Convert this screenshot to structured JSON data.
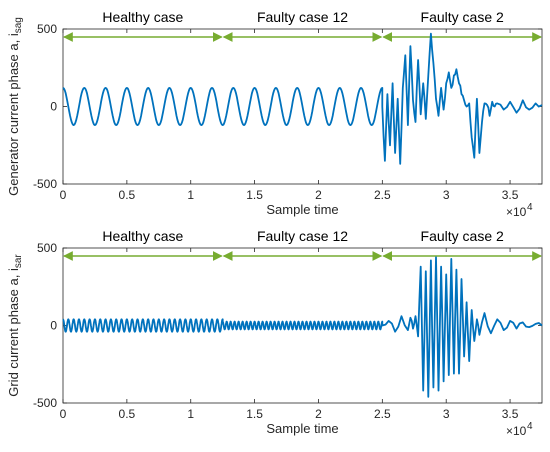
{
  "chart_data": [
    {
      "type": "line",
      "ylabel": "Generator current phase a, i",
      "ylabel_sub": "sag",
      "xlabel": "Sample time",
      "x_exponent_base": "×10",
      "x_exponent_power": "4",
      "xlim": [
        0,
        3.75
      ],
      "ylim": [
        -500,
        500
      ],
      "xticks": [
        0,
        0.5,
        1,
        1.5,
        2,
        2.5,
        3,
        3.5
      ],
      "yticks": [
        -500,
        0,
        500
      ],
      "xtick_labels": [
        "0",
        "0.5",
        "1",
        "1.5",
        "2",
        "2.5",
        "3",
        "3.5"
      ],
      "ytick_labels": [
        "-500",
        "0",
        "500"
      ],
      "line_color": "#0072BD",
      "arrow_color": "#77AC30",
      "segments": [
        {
          "label": "Healthy case",
          "x_start": 0,
          "x_end": 1.25
        },
        {
          "label": "Faulty case 12",
          "x_start": 1.25,
          "x_end": 2.5
        },
        {
          "label": "Faulty case 2",
          "x_start": 2.5,
          "x_end": 3.75
        }
      ],
      "series": [
        {
          "values_description_periodic": [
            {
              "x_start": 0,
              "x_end": 2.5,
              "amplitude": 120,
              "cycles": 15
            }
          ],
          "x": [
            2.5,
            2.52,
            2.54,
            2.56,
            2.58,
            2.6,
            2.62,
            2.64,
            2.66,
            2.68,
            2.7,
            2.72,
            2.74,
            2.76,
            2.78,
            2.8,
            2.82,
            2.84,
            2.86,
            2.88,
            2.9,
            2.92,
            2.94,
            2.96,
            2.98,
            3.0,
            3.02,
            3.04,
            3.06,
            3.08,
            3.1,
            3.12,
            3.14,
            3.16,
            3.18,
            3.2,
            3.22,
            3.24,
            3.26,
            3.28,
            3.3,
            3.32,
            3.34,
            3.36,
            3.38,
            3.4,
            3.45,
            3.5,
            3.55,
            3.6,
            3.65,
            3.7,
            3.75
          ],
          "y": [
            0,
            -350,
            80,
            -250,
            150,
            -300,
            50,
            -370,
            120,
            330,
            -120,
            390,
            40,
            -100,
            300,
            -50,
            150,
            -80,
            200,
            470,
            280,
            50,
            -60,
            120,
            -20,
            150,
            220,
            120,
            200,
            240,
            150,
            80,
            40,
            0,
            20,
            -200,
            -330,
            50,
            -300,
            -100,
            20,
            10,
            -60,
            30,
            0,
            20,
            -20,
            30,
            -40,
            40,
            -20,
            20,
            10
          ]
        }
      ]
    },
    {
      "type": "line",
      "ylabel": "Grid current phase a, i",
      "ylabel_sub": "sar",
      "xlabel": "Sample time",
      "x_exponent_base": "×10",
      "x_exponent_power": "4",
      "xlim": [
        0,
        3.75
      ],
      "ylim": [
        -500,
        500
      ],
      "xticks": [
        0,
        0.5,
        1,
        1.5,
        2,
        2.5,
        3,
        3.5
      ],
      "yticks": [
        -500,
        0,
        500
      ],
      "xtick_labels": [
        "0",
        "0.5",
        "1",
        "1.5",
        "2",
        "2.5",
        "3",
        "3.5"
      ],
      "ytick_labels": [
        "-500",
        "0",
        "500"
      ],
      "line_color": "#0072BD",
      "arrow_color": "#77AC30",
      "segments": [
        {
          "label": "Healthy case",
          "x_start": 0,
          "x_end": 1.25
        },
        {
          "label": "Faulty case 12",
          "x_start": 1.25,
          "x_end": 2.5
        },
        {
          "label": "Faulty case 2",
          "x_start": 2.5,
          "x_end": 3.75
        }
      ],
      "series": [
        {
          "values_description_periodic": [
            {
              "x_start": 0,
              "x_end": 1.25,
              "amplitude": 40,
              "cycles": 30
            },
            {
              "x_start": 1.25,
              "x_end": 2.5,
              "amplitude": 25,
              "cycles": 40
            }
          ],
          "x": [
            2.5,
            2.55,
            2.6,
            2.65,
            2.7,
            2.72,
            2.74,
            2.76,
            2.78,
            2.8,
            2.82,
            2.84,
            2.86,
            2.88,
            2.9,
            2.92,
            2.94,
            2.96,
            2.98,
            3.0,
            3.02,
            3.04,
            3.06,
            3.08,
            3.1,
            3.12,
            3.14,
            3.16,
            3.18,
            3.2,
            3.22,
            3.24,
            3.26,
            3.3,
            3.35,
            3.4,
            3.45,
            3.5,
            3.55,
            3.6,
            3.65,
            3.7,
            3.75
          ],
          "y": [
            0,
            30,
            -40,
            60,
            -30,
            50,
            -20,
            60,
            -70,
            380,
            -420,
            350,
            -460,
            420,
            -400,
            440,
            -420,
            380,
            -360,
            330,
            -320,
            430,
            -310,
            360,
            -310,
            300,
            -200,
            150,
            -230,
            100,
            -100,
            40,
            -60,
            80,
            -50,
            40,
            -30,
            30,
            -20,
            20,
            -10,
            10,
            0
          ]
        }
      ]
    }
  ]
}
